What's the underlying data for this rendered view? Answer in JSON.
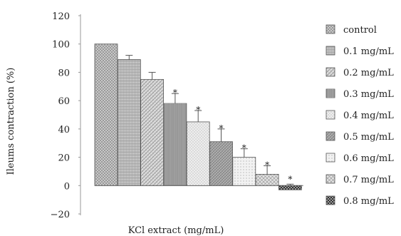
{
  "chart_data": {
    "type": "bar",
    "xlabel": "KCl extract (mg/mL)",
    "ylabel": "Ileums contraction (%)",
    "ylim": [
      -20,
      120
    ],
    "yticks": [
      120,
      100,
      80,
      60,
      40,
      20,
      0,
      -20
    ],
    "grid": false,
    "legend": "right",
    "series": [
      {
        "name": "control",
        "value": 100,
        "error": 0,
        "sig": ""
      },
      {
        "name": "0.1 mg/mL",
        "value": 89,
        "error": 3,
        "sig": ""
      },
      {
        "name": "0.2 mg/mL",
        "value": 75,
        "error": 5,
        "sig": ""
      },
      {
        "name": "0.3 mg/mL",
        "value": 58,
        "error": 7,
        "sig": "*"
      },
      {
        "name": "0.4 mg/mL",
        "value": 45,
        "error": 8,
        "sig": "*"
      },
      {
        "name": "0.5 mg/mL",
        "value": 31,
        "error": 9,
        "sig": "*"
      },
      {
        "name": "0.6 mg/mL",
        "value": 20,
        "error": 6,
        "sig": "*"
      },
      {
        "name": "0.7 mg/mL",
        "value": 8,
        "error": 6,
        "sig": "*"
      },
      {
        "name": "0.8 mg/mL",
        "value": -3,
        "error": 4,
        "sig": "*"
      }
    ]
  }
}
